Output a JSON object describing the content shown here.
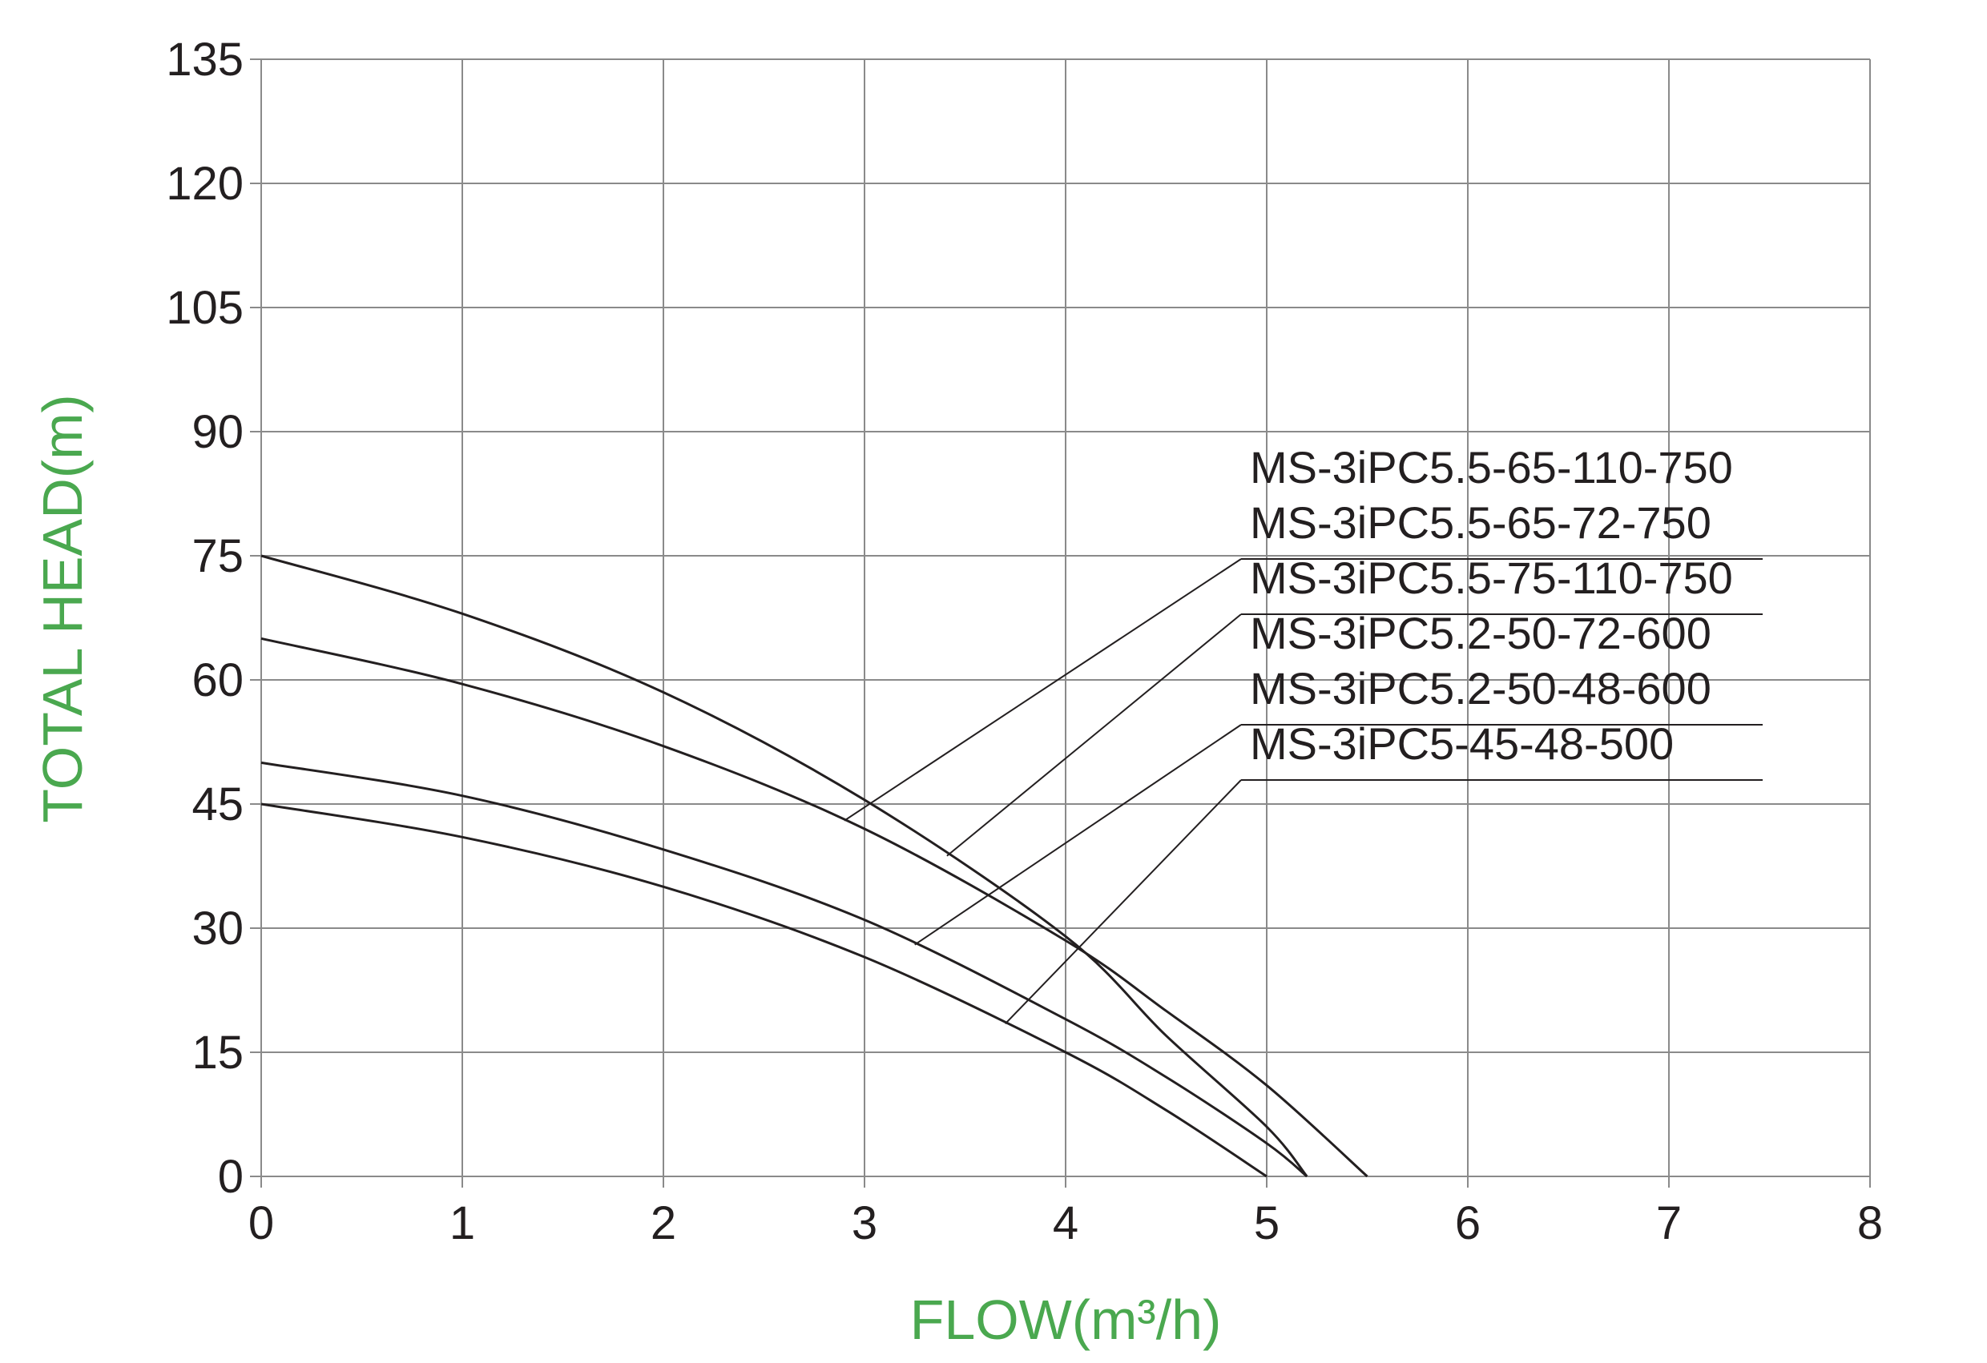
{
  "chart_data": {
    "type": "line",
    "x_label": "FLOW(m³/h)",
    "y_label": "TOTAL HEAD(m)",
    "xlim": [
      0,
      8
    ],
    "xticks": [
      0,
      1,
      2,
      3,
      4,
      5,
      6,
      7,
      8
    ],
    "ylim": [
      0,
      135
    ],
    "yticks": [
      0,
      15,
      30,
      45,
      60,
      75,
      90,
      105,
      120,
      135
    ],
    "grid": true,
    "series": [
      {
        "labels": [
          "MS-3iPC5.5-65-110-750",
          "MS-3iPC5.5-65-72-750"
        ],
        "color": "#231f20",
        "x": [
          0,
          1,
          2,
          3,
          4,
          4.5,
          5,
          5.5
        ],
        "values": [
          65,
          59.5,
          52,
          42,
          28.5,
          20,
          11,
          0
        ]
      },
      {
        "labels": [
          "MS-3iPC5.5-75-110-750"
        ],
        "color": "#231f20",
        "x": [
          0,
          1,
          2,
          3,
          4,
          4.5,
          5,
          5.2
        ],
        "values": [
          75,
          68,
          58.5,
          45.5,
          29,
          17,
          6,
          0
        ]
      },
      {
        "labels": [
          "MS-3iPC5.2-50-72-600",
          "MS-3iPC5.2-50-48-600"
        ],
        "color": "#231f20",
        "x": [
          0,
          1,
          2,
          3,
          4,
          4.5,
          5,
          5.2
        ],
        "values": [
          50,
          46,
          39.5,
          31,
          19,
          12,
          4,
          0
        ]
      },
      {
        "labels": [
          "MS-3iPC5-45-48-500"
        ],
        "color": "#231f20",
        "x": [
          0,
          1,
          2,
          3,
          4,
          4.5,
          5
        ],
        "values": [
          45,
          41,
          35,
          26.5,
          15,
          8,
          0
        ]
      }
    ]
  }
}
